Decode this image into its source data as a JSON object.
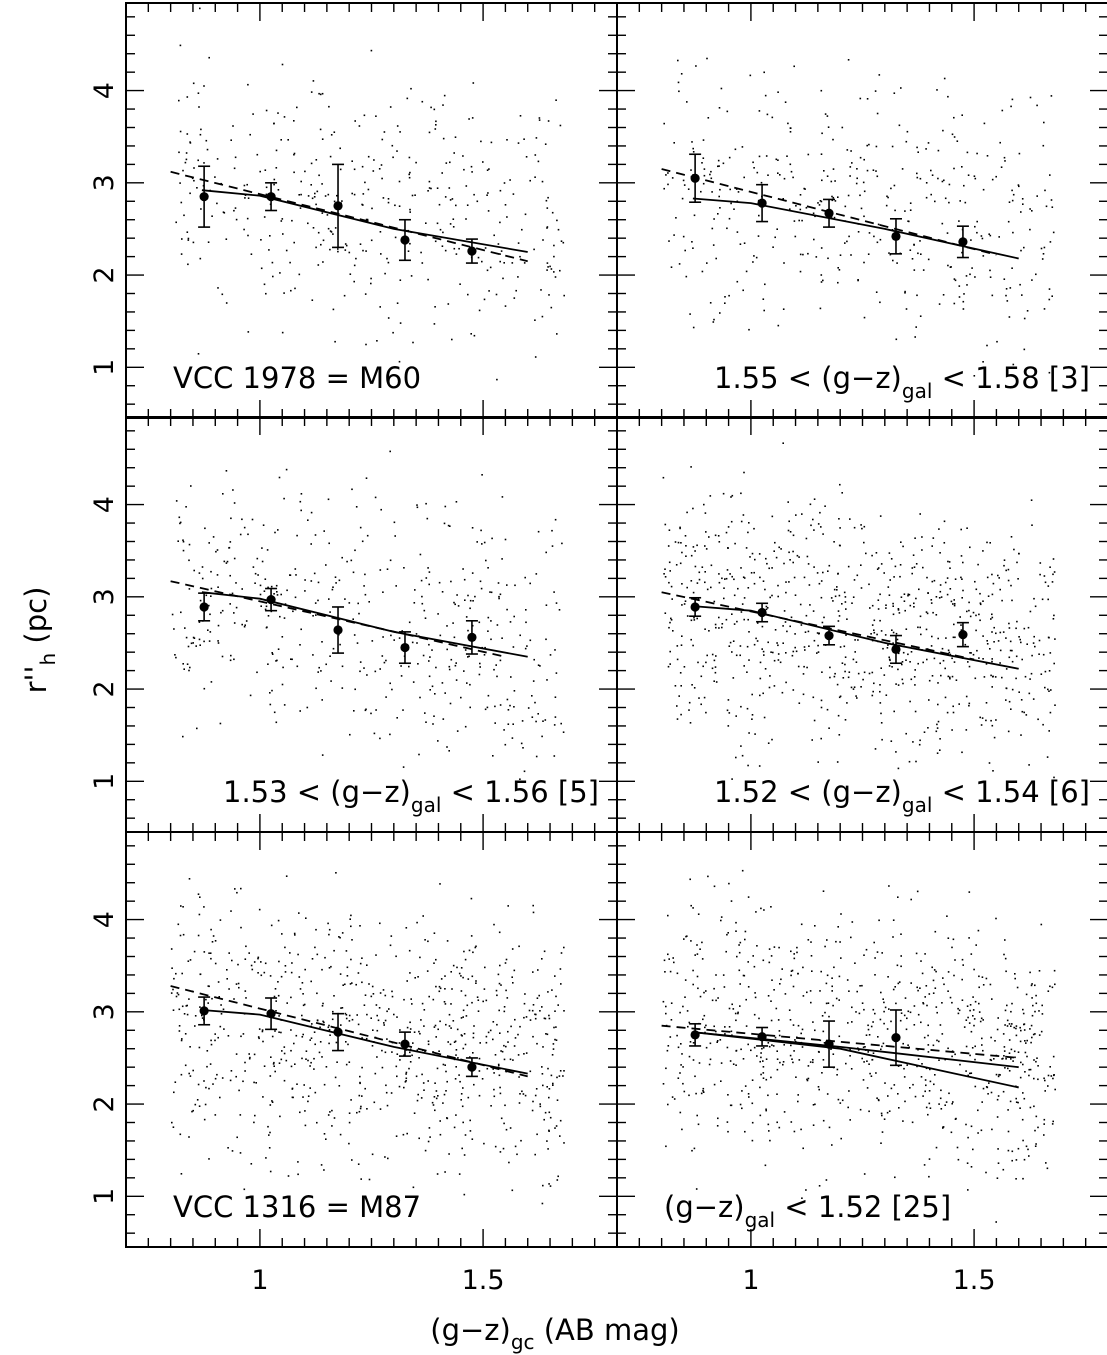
{
  "figure": {
    "xlabel": "(g−z)",
    "xlabel_sub": "gc",
    "xlabel_unit": " (AB mag)",
    "ylabel": "r''",
    "ylabel_sub": "h",
    "ylabel_unit": " (pc)"
  },
  "chart_data": {
    "type": "scatter",
    "layout": "3 rows x 2 columns, shared axes",
    "xlim": [
      0.7,
      1.8
    ],
    "ylim": [
      0.45,
      4.95
    ],
    "xticks": [
      1,
      1.5
    ],
    "xtick_labels": [
      "1",
      "1.5"
    ],
    "yticks": [
      1,
      2,
      3,
      4
    ],
    "ytick_labels": [
      "1",
      "2",
      "3",
      "4"
    ],
    "binned_x": [
      0.875,
      1.025,
      1.175,
      1.325,
      1.475
    ],
    "panels": [
      {
        "label_pre": "VCC 1978 = M60",
        "label_sub": "",
        "label_post": "",
        "label_anchor": "left",
        "scatter_points": 420,
        "scatter_seed": 11,
        "binned_y": [
          2.85,
          2.85,
          2.75,
          2.38,
          2.26
        ],
        "errors": [
          0.33,
          0.15,
          0.45,
          0.22,
          0.13
        ],
        "solid_model": {
          "x": [
            0.87,
            1.0,
            1.3,
            1.6
          ],
          "y": [
            2.92,
            2.86,
            2.5,
            2.25
          ]
        },
        "solid_model_2": null,
        "dashed_model": {
          "x": [
            0.8,
            1.6
          ],
          "y": [
            3.12,
            2.15
          ]
        }
      },
      {
        "label_pre": "1.55 < (g−z)",
        "label_sub": "gal",
        "label_post": " < 1.58 [3]",
        "label_anchor": "right",
        "scatter_points": 430,
        "scatter_seed": 23,
        "binned_y": [
          3.05,
          2.78,
          2.67,
          2.42,
          2.36
        ],
        "errors": [
          0.26,
          0.2,
          0.15,
          0.19,
          0.17
        ],
        "solid_model": {
          "x": [
            0.87,
            1.0,
            1.3,
            1.6
          ],
          "y": [
            2.83,
            2.78,
            2.5,
            2.18
          ]
        },
        "solid_model_2": null,
        "dashed_model": {
          "x": [
            0.8,
            1.55
          ],
          "y": [
            3.15,
            2.22
          ]
        }
      },
      {
        "label_pre": "1.53 < (g−z)",
        "label_sub": "gal",
        "label_post": " < 1.56 [5]",
        "label_anchor": "right",
        "scatter_points": 480,
        "scatter_seed": 37,
        "binned_y": [
          2.89,
          2.97,
          2.64,
          2.45,
          2.56
        ],
        "errors": [
          0.15,
          0.12,
          0.25,
          0.17,
          0.18
        ],
        "solid_model": {
          "x": [
            0.87,
            1.0,
            1.3,
            1.6
          ],
          "y": [
            3.05,
            2.98,
            2.62,
            2.35
          ]
        },
        "solid_model_2": null,
        "dashed_model": {
          "x": [
            0.8,
            1.55
          ],
          "y": [
            3.17,
            2.35
          ]
        }
      },
      {
        "label_pre": "1.52 < (g−z)",
        "label_sub": "gal",
        "label_post": " < 1.54 [6]",
        "label_anchor": "right",
        "scatter_points": 820,
        "scatter_seed": 53,
        "binned_y": [
          2.89,
          2.83,
          2.58,
          2.43,
          2.59
        ],
        "errors": [
          0.1,
          0.1,
          0.1,
          0.15,
          0.13
        ],
        "solid_model": {
          "x": [
            0.87,
            1.0,
            1.3,
            1.6
          ],
          "y": [
            2.9,
            2.85,
            2.5,
            2.22
          ]
        },
        "solid_model_2": null,
        "dashed_model": {
          "x": [
            0.8,
            1.5
          ],
          "y": [
            3.05,
            2.32
          ]
        }
      },
      {
        "label_pre": "VCC 1316 = M87",
        "label_sub": "",
        "label_post": "",
        "label_anchor": "left",
        "scatter_points": 820,
        "scatter_seed": 71,
        "binned_y": [
          3.01,
          2.98,
          2.78,
          2.65,
          2.4
        ],
        "errors": [
          0.15,
          0.17,
          0.2,
          0.13,
          0.1
        ],
        "solid_model": {
          "x": [
            0.87,
            1.0,
            1.3,
            1.6
          ],
          "y": [
            3.02,
            2.97,
            2.62,
            2.33
          ]
        },
        "solid_model_2": null,
        "dashed_model": {
          "x": [
            0.8,
            1.6
          ],
          "y": [
            3.28,
            2.3
          ]
        }
      },
      {
        "label_pre": "(g−z)",
        "label_sub": "gal",
        "label_post": " < 1.52 [25]",
        "label_anchor": "left",
        "scatter_points": 820,
        "scatter_seed": 97,
        "binned_y": [
          2.75,
          2.73,
          2.65,
          2.72
        ],
        "binned_x": [
          0.875,
          1.025,
          1.175,
          1.325
        ],
        "errors": [
          0.12,
          0.1,
          0.25,
          0.3
        ],
        "solid_model": {
          "x": [
            0.87,
            1.2,
            1.6
          ],
          "y": [
            2.78,
            2.62,
            2.4
          ]
        },
        "solid_model_2": {
          "x": [
            0.87,
            1.2,
            1.6
          ],
          "y": [
            2.78,
            2.6,
            2.18
          ]
        },
        "dashed_model": {
          "x": [
            0.8,
            1.6
          ],
          "y": [
            2.85,
            2.5
          ]
        }
      }
    ]
  }
}
